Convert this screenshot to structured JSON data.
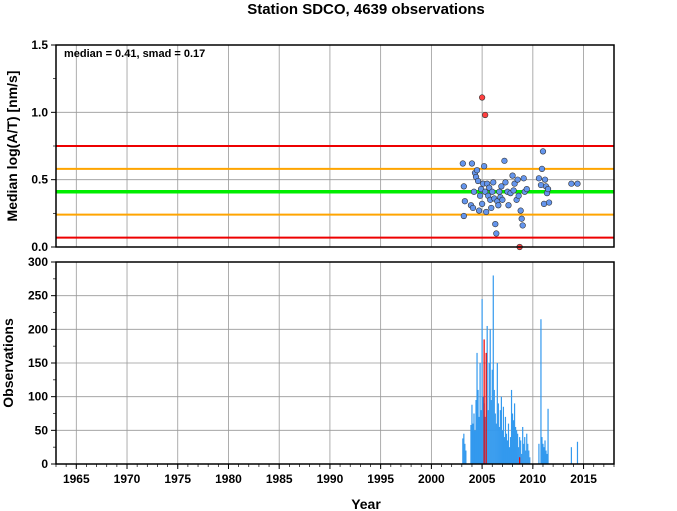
{
  "chart_data": [
    {
      "type": "scatter",
      "title": "Station SDCO, 4639 observations",
      "xlabel": "",
      "ylabel": "Median log(A/T) [nm/s]",
      "xlim": [
        1963,
        2018
      ],
      "ylim": [
        0.0,
        1.5
      ],
      "yticks": [
        "0.0",
        "0.5",
        "1.0",
        "1.5"
      ],
      "grid": true,
      "annotation": "median = 0.41, smad = 0.17",
      "reference_lines": [
        {
          "y": 0.41,
          "color": "#00ee00"
        },
        {
          "y": 0.58,
          "color": "#ffa500"
        },
        {
          "y": 0.24,
          "color": "#ffa500"
        },
        {
          "y": 0.75,
          "color": "#ee0000"
        },
        {
          "y": 0.07,
          "color": "#ee0000"
        }
      ],
      "series": [
        {
          "color": "#6495ed",
          "points": [
            [
              2003.1,
              0.62
            ],
            [
              2003.2,
              0.45
            ],
            [
              2003.3,
              0.34
            ],
            [
              2003.2,
              0.23
            ],
            [
              2003.9,
              0.31
            ],
            [
              2004.0,
              0.62
            ],
            [
              2004.1,
              0.29
            ],
            [
              2004.2,
              0.41
            ],
            [
              2004.3,
              0.55
            ],
            [
              2004.4,
              0.52
            ],
            [
              2004.5,
              0.57
            ],
            [
              2004.6,
              0.49
            ],
            [
              2004.7,
              0.27
            ],
            [
              2004.8,
              0.38
            ],
            [
              2004.9,
              0.43
            ],
            [
              2005.0,
              0.32
            ],
            [
              2005.1,
              0.47
            ],
            [
              2005.2,
              0.6
            ],
            [
              2005.3,
              0.41
            ],
            [
              2005.4,
              0.26
            ],
            [
              2005.5,
              0.47
            ],
            [
              2005.6,
              0.38
            ],
            [
              2005.7,
              0.44
            ],
            [
              2005.8,
              0.35
            ],
            [
              2005.9,
              0.29
            ],
            [
              2006.0,
              0.41
            ],
            [
              2006.1,
              0.48
            ],
            [
              2006.2,
              0.36
            ],
            [
              2006.3,
              0.17
            ],
            [
              2006.4,
              0.1
            ],
            [
              2006.5,
              0.34
            ],
            [
              2006.6,
              0.31
            ],
            [
              2006.7,
              0.41
            ],
            [
              2006.8,
              0.37
            ],
            [
              2006.9,
              0.45
            ],
            [
              2007.0,
              0.35
            ],
            [
              2007.2,
              0.64
            ],
            [
              2007.3,
              0.48
            ],
            [
              2007.5,
              0.41
            ],
            [
              2007.6,
              0.31
            ],
            [
              2007.8,
              0.4
            ],
            [
              2008.0,
              0.53
            ],
            [
              2008.1,
              0.42
            ],
            [
              2008.2,
              0.47
            ],
            [
              2008.4,
              0.35
            ],
            [
              2008.5,
              0.5
            ],
            [
              2008.6,
              0.38
            ],
            [
              2008.8,
              0.27
            ],
            [
              2008.9,
              0.21
            ],
            [
              2009.0,
              0.16
            ],
            [
              2009.1,
              0.51
            ],
            [
              2009.2,
              0.41
            ],
            [
              2009.4,
              0.43
            ],
            [
              2010.6,
              0.51
            ],
            [
              2010.8,
              0.46
            ],
            [
              2010.9,
              0.58
            ],
            [
              2011.0,
              0.71
            ],
            [
              2011.1,
              0.32
            ],
            [
              2011.2,
              0.5
            ],
            [
              2011.3,
              0.45
            ],
            [
              2011.4,
              0.4
            ],
            [
              2011.5,
              0.43
            ],
            [
              2011.6,
              0.33
            ],
            [
              2013.8,
              0.47
            ],
            [
              2014.4,
              0.47
            ]
          ]
        },
        {
          "color": "#ff4040",
          "points": [
            [
              2005.0,
              1.11
            ],
            [
              2005.3,
              0.98
            ],
            [
              2008.7,
              0.0
            ]
          ]
        }
      ]
    },
    {
      "type": "bar",
      "title": "",
      "xlabel": "Year",
      "ylabel": "Observations",
      "xlim": [
        1963,
        2018
      ],
      "ylim": [
        0,
        300
      ],
      "xticks": [
        "1965",
        "1970",
        "1975",
        "1980",
        "1985",
        "1990",
        "1995",
        "2000",
        "2005",
        "2010",
        "2015"
      ],
      "yticks": [
        "0",
        "50",
        "100",
        "150",
        "200",
        "250",
        "300"
      ],
      "grid": true,
      "series": [
        {
          "color": "#3399ee",
          "bars": [
            [
              2003.1,
              38
            ],
            [
              2003.2,
              45
            ],
            [
              2003.3,
              30
            ],
            [
              2003.4,
              20
            ],
            [
              2003.9,
              58
            ],
            [
              2004.0,
              88
            ],
            [
              2004.1,
              60
            ],
            [
              2004.2,
              75
            ],
            [
              2004.3,
              50
            ],
            [
              2004.4,
              95
            ],
            [
              2004.5,
              165
            ],
            [
              2004.6,
              110
            ],
            [
              2004.7,
              70
            ],
            [
              2004.8,
              150
            ],
            [
              2004.9,
              80
            ],
            [
              2005.0,
              245
            ],
            [
              2005.1,
              100
            ],
            [
              2005.2,
              90
            ],
            [
              2005.3,
              70
            ],
            [
              2005.5,
              205
            ],
            [
              2005.6,
              80
            ],
            [
              2005.7,
              150
            ],
            [
              2005.8,
              200
            ],
            [
              2005.9,
              95
            ],
            [
              2006.0,
              140
            ],
            [
              2006.1,
              280
            ],
            [
              2006.2,
              110
            ],
            [
              2006.3,
              75
            ],
            [
              2006.4,
              60
            ],
            [
              2006.5,
              150
            ],
            [
              2006.6,
              90
            ],
            [
              2006.7,
              55
            ],
            [
              2006.8,
              80
            ],
            [
              2006.9,
              100
            ],
            [
              2007.0,
              50
            ],
            [
              2007.1,
              85
            ],
            [
              2007.2,
              40
            ],
            [
              2007.3,
              70
            ],
            [
              2007.4,
              45
            ],
            [
              2007.5,
              35
            ],
            [
              2007.6,
              60
            ],
            [
              2007.7,
              25
            ],
            [
              2007.8,
              40
            ],
            [
              2007.9,
              110
            ],
            [
              2008.0,
              75
            ],
            [
              2008.1,
              65
            ],
            [
              2008.2,
              90
            ],
            [
              2008.3,
              55
            ],
            [
              2008.4,
              50
            ],
            [
              2008.5,
              45
            ],
            [
              2008.6,
              25
            ],
            [
              2008.7,
              40
            ],
            [
              2008.8,
              35
            ],
            [
              2008.9,
              15
            ],
            [
              2009.0,
              55
            ],
            [
              2009.1,
              30
            ],
            [
              2009.2,
              40
            ],
            [
              2009.3,
              20
            ],
            [
              2009.4,
              45
            ],
            [
              2009.5,
              30
            ],
            [
              2009.6,
              20
            ],
            [
              2009.7,
              10
            ],
            [
              2010.6,
              30
            ],
            [
              2010.8,
              215
            ],
            [
              2010.9,
              40
            ],
            [
              2011.0,
              30
            ],
            [
              2011.1,
              25
            ],
            [
              2011.2,
              35
            ],
            [
              2011.3,
              20
            ],
            [
              2011.4,
              15
            ],
            [
              2011.5,
              82
            ],
            [
              2013.8,
              25
            ],
            [
              2014.4,
              33
            ]
          ]
        },
        {
          "color": "#ee0000",
          "bars": [
            [
              2005.2,
              185
            ],
            [
              2005.4,
              165
            ],
            [
              2008.7,
              10
            ]
          ]
        }
      ]
    }
  ]
}
